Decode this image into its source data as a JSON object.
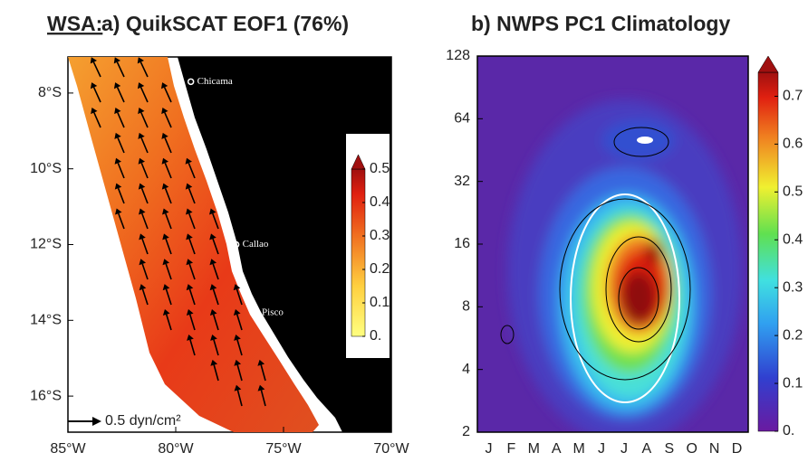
{
  "chart_data": [
    {
      "type": "map",
      "title_tag": "WSA:",
      "title": "a) QuikSCAT EOF1 (76%)",
      "xlim": [
        -85,
        -70
      ],
      "xticks": [
        {
          "value": -85,
          "label": "85°W"
        },
        {
          "value": -80,
          "label": "80°W"
        },
        {
          "value": -75,
          "label": "75°W"
        },
        {
          "value": -70,
          "label": "70°W"
        }
      ],
      "ylim": [
        -17,
        -7
      ],
      "yticks": [
        {
          "value": -8,
          "label": "8°S"
        },
        {
          "value": -10,
          "label": "10°S"
        },
        {
          "value": -12,
          "label": "12°S"
        },
        {
          "value": -14,
          "label": "14°S"
        },
        {
          "value": -16,
          "label": "16°S"
        }
      ],
      "places": [
        {
          "name": "Chicama",
          "lon": -79.3,
          "lat": -7.7
        },
        {
          "name": "Callao",
          "lon": -77.2,
          "lat": -12.0
        },
        {
          "name": "Pisco",
          "lon": -76.3,
          "lat": -13.8
        }
      ],
      "scale_label": "0.5 dyn/cm²",
      "clim": [
        0,
        0.5
      ],
      "cticks": [
        {
          "value": 0,
          "label": "0."
        },
        0.1,
        0.2,
        0.3,
        0.4,
        0.5
      ]
    },
    {
      "type": "contour",
      "title": "b) NWPS PC1 Climatology",
      "categories": [
        "J",
        "F",
        "M",
        "A",
        "M",
        "J",
        "J",
        "A",
        "S",
        "O",
        "N",
        "D"
      ],
      "log_scale": true,
      "ylim": [
        2,
        128
      ],
      "yticks": [
        2,
        4,
        8,
        16,
        32,
        64,
        128
      ],
      "clim": [
        0,
        0.75
      ],
      "cticks": [
        {
          "value": 0,
          "label": "0."
        },
        0.1,
        0.2,
        0.3,
        0.4,
        0.5,
        0.6,
        0.7
      ]
    }
  ]
}
